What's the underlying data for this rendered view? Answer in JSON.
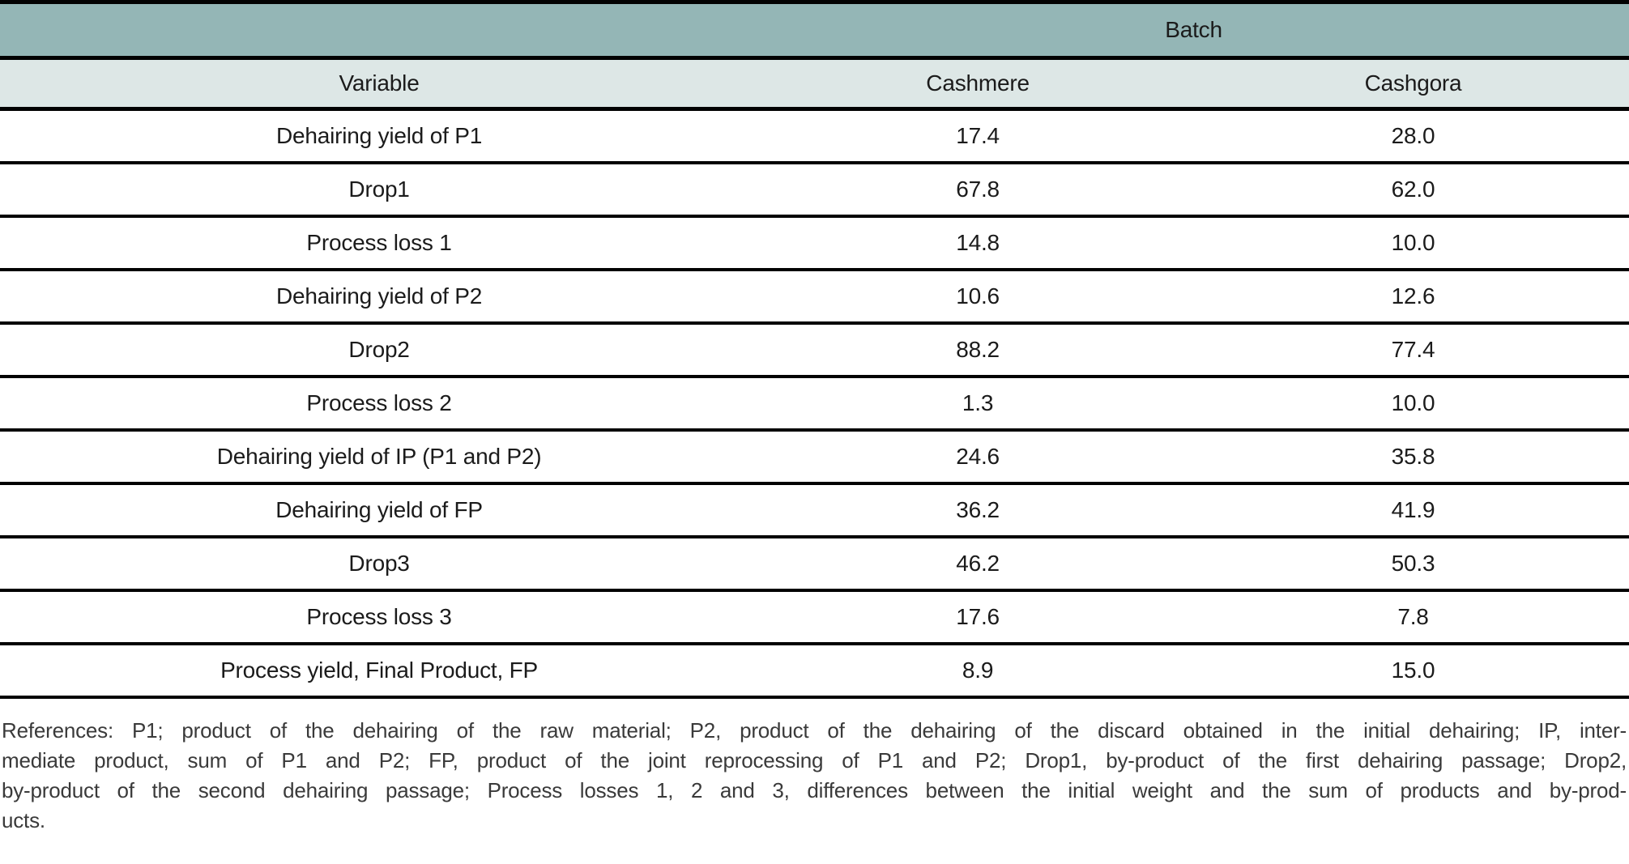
{
  "table": {
    "group_header": "Batch",
    "columns": [
      "Variable",
      "Cashmere",
      "Cashgora"
    ],
    "rows": [
      {
        "variable": "Dehairing yield of P1",
        "cashmere": "17.4",
        "cashgora": "28.0"
      },
      {
        "variable": "Drop1",
        "cashmere": "67.8",
        "cashgora": "62.0"
      },
      {
        "variable": "Process loss 1",
        "cashmere": "14.8",
        "cashgora": "10.0"
      },
      {
        "variable": "Dehairing yield of P2",
        "cashmere": "10.6",
        "cashgora": "12.6"
      },
      {
        "variable": "Drop2",
        "cashmere": "88.2",
        "cashgora": "77.4"
      },
      {
        "variable": "Process loss 2",
        "cashmere": "1.3",
        "cashgora": "10.0"
      },
      {
        "variable": "Dehairing yield of IP (P1 and P2)",
        "cashmere": "24.6",
        "cashgora": "35.8"
      },
      {
        "variable": "Dehairing yield of FP",
        "cashmere": "36.2",
        "cashgora": "41.9"
      },
      {
        "variable": "Drop3",
        "cashmere": "46.2",
        "cashgora": "50.3"
      },
      {
        "variable": "Process loss 3",
        "cashmere": "17.6",
        "cashgora": "7.8"
      },
      {
        "variable": "Process yield, Final Product, FP",
        "cashmere": "8.9",
        "cashgora": "15.0"
      }
    ]
  },
  "footnote": {
    "lines": [
      "References: P1; product of the dehairing of the raw material; P2, product of the dehairing of the discard obtained in the initial dehairing; IP, inter-",
      "mediate product, sum of P1 and P2; FP, product of the joint reprocessing of P1 and P2; Drop1, by-product of the first dehairing passage; Drop2,",
      "by-product of the second dehairing passage; Process losses 1, 2 and 3, differences between the initial weight and the sum of products and by-prod-",
      "ucts."
    ],
    "full_text": "References: P1; product of the dehairing of the raw material; P2, product of the dehairing of the discard obtained in the initial dehairing; IP, intermediate product, sum of P1 and P2; FP, product of the joint reprocessing of P1 and P2; Drop1, by-product of the first dehairing passage; Drop2, by-product of the second dehairing passage; Process losses 1, 2 and 3, differences between the initial weight and the sum of products and by-products."
  },
  "colors": {
    "group_header_bg": "#94b6b6",
    "column_header_bg": "#dde7e6",
    "rule": "#020202",
    "table_text": "#1b1b1b",
    "footnote_text": "#3a3a3a"
  }
}
